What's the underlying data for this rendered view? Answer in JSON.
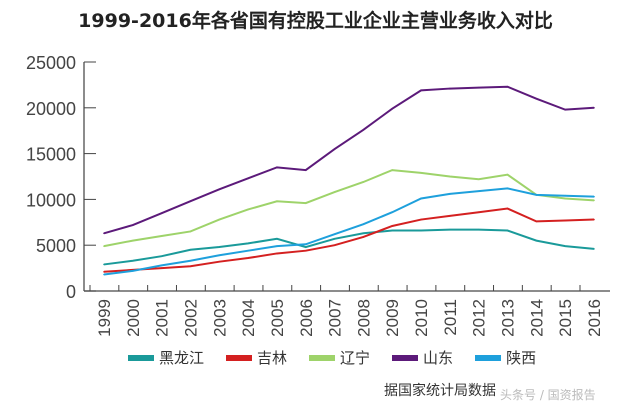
{
  "chart_data": {
    "type": "line",
    "title": "1999-2016年各省国有控股工业企业主营业务收入对比",
    "xlabel": "",
    "ylabel": "",
    "x": [
      "1999",
      "2000",
      "2001",
      "2002",
      "2003",
      "2004",
      "2005",
      "2006",
      "2007",
      "2008",
      "2009",
      "2010",
      "2011",
      "2012",
      "2013",
      "2014",
      "2015",
      "2016"
    ],
    "ylim": [
      0,
      25000
    ],
    "yticks": [
      0,
      5000,
      10000,
      15000,
      20000,
      25000
    ],
    "grid": false,
    "legend": "bottom",
    "series": [
      {
        "name": "黑龙江",
        "color": "#1a9a9a",
        "values": [
          2900,
          3300,
          3800,
          4500,
          4800,
          5200,
          5700,
          4800,
          5700,
          6300,
          6600,
          6600,
          6700,
          6700,
          6600,
          5500,
          4900,
          4600
        ]
      },
      {
        "name": "吉林",
        "color": "#d42020",
        "values": [
          2100,
          2300,
          2500,
          2700,
          3200,
          3600,
          4100,
          4400,
          5000,
          5900,
          7100,
          7800,
          8200,
          8600,
          9000,
          7600,
          7700,
          7800
        ]
      },
      {
        "name": "辽宁",
        "color": "#9ed36a",
        "values": [
          4900,
          5500,
          6000,
          6500,
          7800,
          8900,
          9800,
          9600,
          10800,
          11900,
          13200,
          12900,
          12500,
          12200,
          12700,
          10500,
          10100,
          9900
        ]
      },
      {
        "name": "山东",
        "color": "#5c1a7a",
        "values": [
          6300,
          7200,
          8500,
          9800,
          11100,
          12300,
          13500,
          13200,
          15500,
          17600,
          19900,
          21900,
          22100,
          22200,
          22300,
          21000,
          19800,
          20000
        ]
      },
      {
        "name": "陕西",
        "color": "#1ea0dc",
        "values": [
          1800,
          2200,
          2800,
          3300,
          3900,
          4400,
          4900,
          5100,
          6200,
          7300,
          8600,
          10100,
          10600,
          10900,
          11200,
          10500,
          10400,
          10300
        ]
      }
    ]
  },
  "source": "据国家统计局数据",
  "watermark": "头条号 / 国资报告"
}
